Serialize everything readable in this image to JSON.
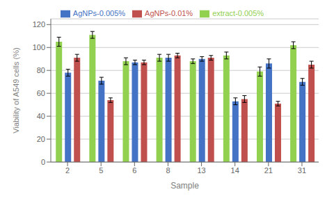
{
  "chart_data": {
    "type": "bar",
    "xlabel": "Sample",
    "ylabel": "Viability of A549 cells (%)",
    "categories": [
      "2",
      "5",
      "6",
      "8",
      "13",
      "14",
      "21",
      "31"
    ],
    "series": [
      {
        "name": "extract-0.005%",
        "color": "#92D050",
        "values": [
          105,
          111,
          88,
          91,
          88,
          93,
          79,
          102
        ],
        "errors": [
          4,
          3,
          3,
          3,
          2,
          3,
          4,
          3
        ]
      },
      {
        "name": "AgNPs-0.005%",
        "color": "#4472C4",
        "values": [
          78,
          71,
          87,
          91,
          90,
          53,
          86,
          70
        ],
        "errors": [
          3,
          3,
          2,
          3,
          2,
          3,
          4,
          3
        ]
      },
      {
        "name": "AgNPs-0.01%",
        "color": "#C0504D",
        "values": [
          91,
          54,
          87,
          93,
          91,
          55,
          51,
          85
        ],
        "errors": [
          3,
          2,
          2,
          2,
          2,
          3,
          2,
          3
        ]
      }
    ],
    "ylim": [
      0,
      125
    ],
    "yticks": [
      0,
      20,
      40,
      60,
      80,
      100,
      120
    ],
    "grid": true,
    "legend": "top"
  }
}
